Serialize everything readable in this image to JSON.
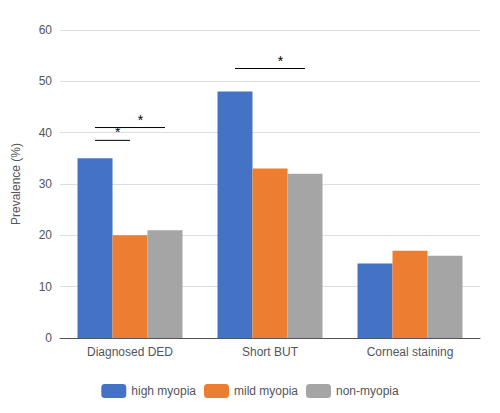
{
  "chart_data": {
    "type": "bar",
    "categories": [
      "Diagnosed DED",
      "Short BUT",
      "Corneal staining"
    ],
    "series": [
      {
        "name": "high myopia",
        "color": "#4472C4",
        "values": [
          35,
          48,
          14.5
        ]
      },
      {
        "name": "mild myopia",
        "color": "#ED7D31",
        "values": [
          20,
          33,
          17
        ]
      },
      {
        "name": "non-myopia",
        "color": "#A5A5A5",
        "values": [
          21,
          32,
          16
        ]
      }
    ],
    "ylabel": "Prevalence (%)",
    "ylim": [
      0,
      60
    ],
    "yticks": [
      0,
      10,
      20,
      30,
      40,
      50,
      60
    ],
    "grid": true,
    "legend": "bottom",
    "annotations": [
      {
        "text": "*",
        "category": "Diagnosed DED",
        "from": "high myopia",
        "to": "mild myopia",
        "y": 38.5
      },
      {
        "text": "*",
        "category": "Diagnosed DED",
        "from": "high myopia",
        "to": "non-myopia",
        "y": 41.0
      },
      {
        "text": "*",
        "category": "Short BUT",
        "from": "high myopia",
        "to": "non-myopia",
        "y": 52.5
      }
    ]
  }
}
